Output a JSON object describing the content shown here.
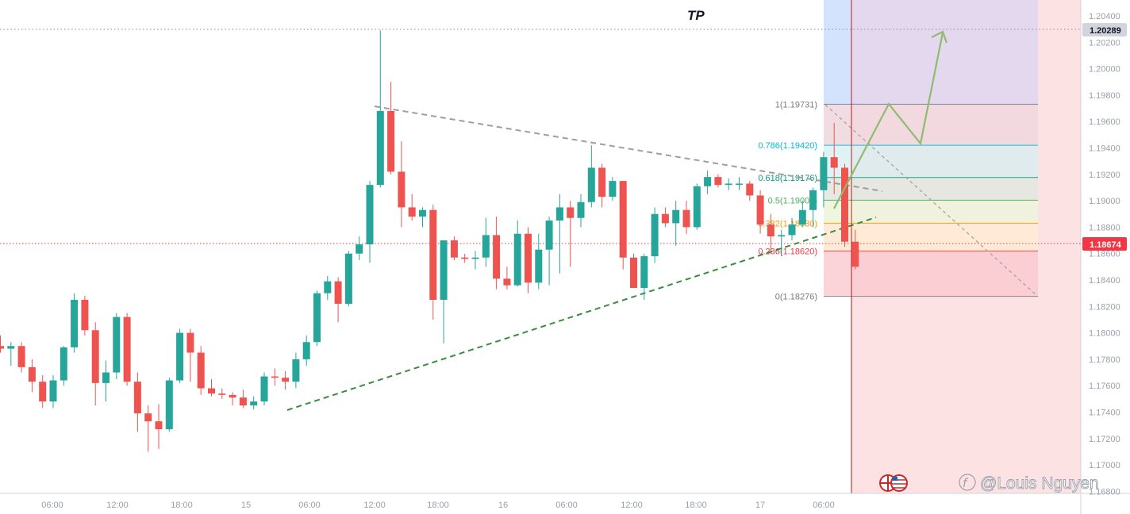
{
  "chart_data": {
    "type": "candlestick",
    "title": "",
    "xlabel": "",
    "ylabel": "",
    "x_ticks": [
      "06:00",
      "12:00",
      "18:00",
      "15",
      "06:00",
      "12:00",
      "18:00",
      "16",
      "06:00",
      "12:00",
      "18:00",
      "17",
      "06:00"
    ],
    "y_ticks": [
      "1.20400",
      "1.20200",
      "1.20000",
      "1.19800",
      "1.19600",
      "1.19400",
      "1.19200",
      "1.19000",
      "1.18800",
      "1.18600",
      "1.18400",
      "1.18200",
      "1.18000",
      "1.17800",
      "1.17600",
      "1.17400",
      "1.17200",
      "1.17000",
      "1.16800"
    ],
    "ylim": [
      1.1675,
      1.205
    ],
    "candles": [
      {
        "o": 1.179,
        "h": 1.1798,
        "l": 1.1785,
        "c": 1.1788
      },
      {
        "o": 1.1788,
        "h": 1.1793,
        "l": 1.1775,
        "c": 1.179
      },
      {
        "o": 1.179,
        "h": 1.1793,
        "l": 1.177,
        "c": 1.1774
      },
      {
        "o": 1.1774,
        "h": 1.178,
        "l": 1.1755,
        "c": 1.1763
      },
      {
        "o": 1.1763,
        "h": 1.1768,
        "l": 1.1743,
        "c": 1.1748
      },
      {
        "o": 1.1748,
        "h": 1.1768,
        "l": 1.1743,
        "c": 1.1764
      },
      {
        "o": 1.1764,
        "h": 1.179,
        "l": 1.176,
        "c": 1.1789
      },
      {
        "o": 1.1789,
        "h": 1.183,
        "l": 1.1785,
        "c": 1.1825
      },
      {
        "o": 1.1825,
        "h": 1.1828,
        "l": 1.1798,
        "c": 1.1802
      },
      {
        "o": 1.1802,
        "h": 1.1808,
        "l": 1.1745,
        "c": 1.1762
      },
      {
        "o": 1.1762,
        "h": 1.1779,
        "l": 1.1748,
        "c": 1.177
      },
      {
        "o": 1.177,
        "h": 1.1815,
        "l": 1.1765,
        "c": 1.1812
      },
      {
        "o": 1.1812,
        "h": 1.1815,
        "l": 1.176,
        "c": 1.1763
      },
      {
        "o": 1.1763,
        "h": 1.177,
        "l": 1.1725,
        "c": 1.1739
      },
      {
        "o": 1.1739,
        "h": 1.1745,
        "l": 1.171,
        "c": 1.1733
      },
      {
        "o": 1.1733,
        "h": 1.1746,
        "l": 1.1712,
        "c": 1.1727
      },
      {
        "o": 1.1727,
        "h": 1.1766,
        "l": 1.1725,
        "c": 1.1764
      },
      {
        "o": 1.1764,
        "h": 1.1803,
        "l": 1.1762,
        "c": 1.18
      },
      {
        "o": 1.18,
        "h": 1.1803,
        "l": 1.1763,
        "c": 1.1785
      },
      {
        "o": 1.1785,
        "h": 1.179,
        "l": 1.1753,
        "c": 1.1758
      },
      {
        "o": 1.1758,
        "h": 1.1765,
        "l": 1.1752,
        "c": 1.1754
      },
      {
        "o": 1.1754,
        "h": 1.1758,
        "l": 1.175,
        "c": 1.1753
      },
      {
        "o": 1.1753,
        "h": 1.1755,
        "l": 1.1745,
        "c": 1.1751
      },
      {
        "o": 1.1751,
        "h": 1.1757,
        "l": 1.1743,
        "c": 1.1745
      },
      {
        "o": 1.1745,
        "h": 1.1752,
        "l": 1.1742,
        "c": 1.1748
      },
      {
        "o": 1.1748,
        "h": 1.177,
        "l": 1.1745,
        "c": 1.1767
      },
      {
        "o": 1.1767,
        "h": 1.1773,
        "l": 1.176,
        "c": 1.1766
      },
      {
        "o": 1.1766,
        "h": 1.1771,
        "l": 1.1757,
        "c": 1.1763
      },
      {
        "o": 1.1763,
        "h": 1.1785,
        "l": 1.1758,
        "c": 1.178
      },
      {
        "o": 1.178,
        "h": 1.1798,
        "l": 1.1775,
        "c": 1.1793
      },
      {
        "o": 1.1793,
        "h": 1.1832,
        "l": 1.179,
        "c": 1.183
      },
      {
        "o": 1.183,
        "h": 1.1843,
        "l": 1.1825,
        "c": 1.1839
      },
      {
        "o": 1.1839,
        "h": 1.1842,
        "l": 1.1808,
        "c": 1.1822
      },
      {
        "o": 1.1822,
        "h": 1.1862,
        "l": 1.182,
        "c": 1.186
      },
      {
        "o": 1.186,
        "h": 1.1873,
        "l": 1.1855,
        "c": 1.1867
      },
      {
        "o": 1.1867,
        "h": 1.1915,
        "l": 1.1853,
        "c": 1.1912
      },
      {
        "o": 1.1912,
        "h": 1.2029,
        "l": 1.191,
        "c": 1.1968
      },
      {
        "o": 1.1968,
        "h": 1.199,
        "l": 1.192,
        "c": 1.1922
      },
      {
        "o": 1.1922,
        "h": 1.1945,
        "l": 1.188,
        "c": 1.1895
      },
      {
        "o": 1.1895,
        "h": 1.1905,
        "l": 1.1885,
        "c": 1.1888
      },
      {
        "o": 1.1888,
        "h": 1.1895,
        "l": 1.188,
        "c": 1.1893
      },
      {
        "o": 1.1893,
        "h": 1.1897,
        "l": 1.181,
        "c": 1.1825
      },
      {
        "o": 1.1825,
        "h": 1.187,
        "l": 1.1792,
        "c": 1.187
      },
      {
        "o": 1.187,
        "h": 1.1873,
        "l": 1.1855,
        "c": 1.1857
      },
      {
        "o": 1.1857,
        "h": 1.186,
        "l": 1.1853,
        "c": 1.1856
      },
      {
        "o": 1.1856,
        "h": 1.1862,
        "l": 1.1848,
        "c": 1.1857
      },
      {
        "o": 1.1857,
        "h": 1.1887,
        "l": 1.185,
        "c": 1.1874
      },
      {
        "o": 1.1874,
        "h": 1.1888,
        "l": 1.1833,
        "c": 1.1841
      },
      {
        "o": 1.1841,
        "h": 1.185,
        "l": 1.1833,
        "c": 1.1836
      },
      {
        "o": 1.1836,
        "h": 1.1885,
        "l": 1.1835,
        "c": 1.1875
      },
      {
        "o": 1.1875,
        "h": 1.188,
        "l": 1.183,
        "c": 1.1838
      },
      {
        "o": 1.1838,
        "h": 1.1875,
        "l": 1.1833,
        "c": 1.1863
      },
      {
        "o": 1.1863,
        "h": 1.1888,
        "l": 1.1836,
        "c": 1.1885
      },
      {
        "o": 1.1885,
        "h": 1.1905,
        "l": 1.1845,
        "c": 1.1895
      },
      {
        "o": 1.1895,
        "h": 1.19,
        "l": 1.185,
        "c": 1.1887
      },
      {
        "o": 1.1887,
        "h": 1.1905,
        "l": 1.188,
        "c": 1.1899
      },
      {
        "o": 1.1899,
        "h": 1.1942,
        "l": 1.1895,
        "c": 1.1925
      },
      {
        "o": 1.1925,
        "h": 1.1928,
        "l": 1.1895,
        "c": 1.1903
      },
      {
        "o": 1.1903,
        "h": 1.1918,
        "l": 1.19,
        "c": 1.1915
      },
      {
        "o": 1.1915,
        "h": 1.1915,
        "l": 1.1848,
        "c": 1.1857
      },
      {
        "o": 1.1857,
        "h": 1.186,
        "l": 1.1835,
        "c": 1.1834
      },
      {
        "o": 1.1834,
        "h": 1.186,
        "l": 1.1825,
        "c": 1.1858
      },
      {
        "o": 1.1858,
        "h": 1.1895,
        "l": 1.1853,
        "c": 1.189
      },
      {
        "o": 1.189,
        "h": 1.1895,
        "l": 1.188,
        "c": 1.1883
      },
      {
        "o": 1.1883,
        "h": 1.19,
        "l": 1.1866,
        "c": 1.1893
      },
      {
        "o": 1.1893,
        "h": 1.19,
        "l": 1.1875,
        "c": 1.188
      },
      {
        "o": 1.188,
        "h": 1.1913,
        "l": 1.1878,
        "c": 1.1911
      },
      {
        "o": 1.1911,
        "h": 1.1923,
        "l": 1.1905,
        "c": 1.1918
      },
      {
        "o": 1.1918,
        "h": 1.192,
        "l": 1.191,
        "c": 1.1912
      },
      {
        "o": 1.1912,
        "h": 1.1917,
        "l": 1.1908,
        "c": 1.1913
      },
      {
        "o": 1.1913,
        "h": 1.1918,
        "l": 1.1908,
        "c": 1.1913
      },
      {
        "o": 1.1913,
        "h": 1.1915,
        "l": 1.19,
        "c": 1.1904
      },
      {
        "o": 1.1904,
        "h": 1.1908,
        "l": 1.1875,
        "c": 1.1882
      },
      {
        "o": 1.1882,
        "h": 1.189,
        "l": 1.186,
        "c": 1.1873
      },
      {
        "o": 1.1873,
        "h": 1.1878,
        "l": 1.1858,
        "c": 1.1874
      },
      {
        "o": 1.1874,
        "h": 1.1887,
        "l": 1.187,
        "c": 1.1882
      },
      {
        "o": 1.1882,
        "h": 1.19,
        "l": 1.188,
        "c": 1.1893
      },
      {
        "o": 1.1893,
        "h": 1.191,
        "l": 1.188,
        "c": 1.1908
      },
      {
        "o": 1.1908,
        "h": 1.1937,
        "l": 1.1895,
        "c": 1.1933
      },
      {
        "o": 1.1933,
        "h": 1.1959,
        "l": 1.1905,
        "c": 1.1925
      },
      {
        "o": 1.1925,
        "h": 1.1928,
        "l": 1.1865,
        "c": 1.1869
      },
      {
        "o": 1.1869,
        "h": 1.1878,
        "l": 1.1848,
        "c": 1.185
      }
    ],
    "fib_levels": [
      {
        "ratio": "0",
        "price": 1.18276,
        "label": "0(1.18276)",
        "color": "#787b86"
      },
      {
        "ratio": "0.236",
        "price": 1.1862,
        "label": "0.236(1.18620)",
        "color": "#f23645"
      },
      {
        "ratio": "0.382",
        "price": 1.1883,
        "label": "0.382(1.18830)",
        "color": "#ff9800"
      },
      {
        "ratio": "0.5",
        "price": 1.19004,
        "label": "0.5(1.19004)",
        "color": "#4caf50"
      },
      {
        "ratio": "0.618",
        "price": 1.19176,
        "label": "0.618(1.19176)",
        "color": "#089981"
      },
      {
        "ratio": "0.786",
        "price": 1.1942,
        "label": "0.786(1.19420)",
        "color": "#00bcd4"
      },
      {
        "ratio": "1",
        "price": 1.19731,
        "label": "1(1.19731)",
        "color": "#787b86"
      }
    ],
    "annotations": {
      "tp_label": "TP",
      "tp_price": 1.20289,
      "tp_tag": "1.20289",
      "current_price": 1.18674,
      "current_tag": "1.18674",
      "watermark": "@Louis Nguyen"
    }
  },
  "colors": {
    "up": "#26a69a",
    "down": "#ef5350",
    "background": "#ffffff",
    "axis_text": "#9aa0ab",
    "trend_up": "#388e3c",
    "trend_down": "#9e9e9e",
    "projection": "#8fbc6f",
    "price_tag": "#f23645",
    "tp_tag": "#d1d4dc",
    "zone_red": "#fde2e4",
    "zone_blue": "#d4e3fd",
    "zone_purple": "#e4d8ef",
    "session_line": "#b71c1c"
  },
  "icons": {
    "flags": "flag-icon",
    "watermark_logo": "tradingview-logo-icon"
  }
}
